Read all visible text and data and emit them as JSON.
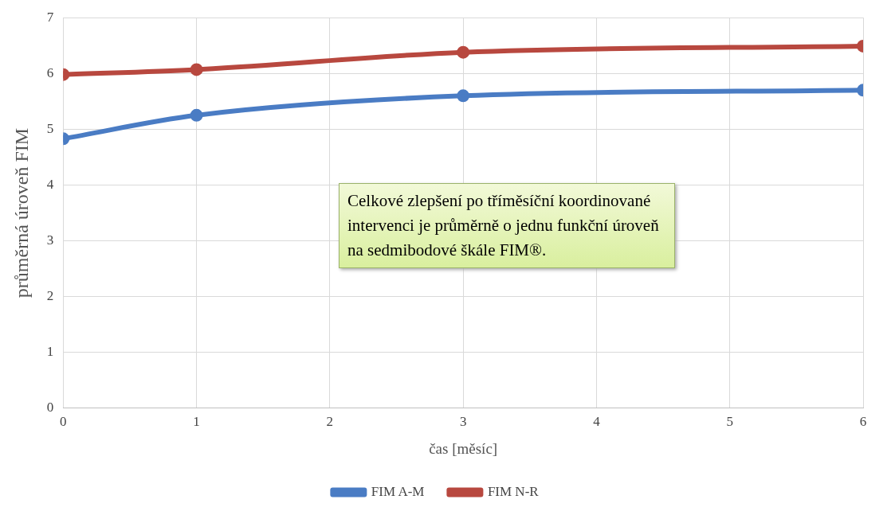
{
  "chart_data": {
    "type": "line",
    "xlabel": "čas [měsíc]",
    "ylabel": "průměrná úroveň FIM",
    "x": [
      0,
      1,
      3,
      6
    ],
    "series": [
      {
        "name": "FIM A-M",
        "color": "#4a7cc4",
        "values": [
          4.83,
          5.25,
          5.6,
          5.7
        ]
      },
      {
        "name": "FIM N-R",
        "color": "#b8483f",
        "values": [
          5.98,
          6.07,
          6.38,
          6.49
        ]
      }
    ],
    "xlim": [
      0,
      6
    ],
    "xticks": [
      0,
      1,
      2,
      3,
      4,
      5,
      6
    ],
    "ylim": [
      0,
      7
    ],
    "yticks": [
      0,
      1,
      2,
      3,
      4,
      5,
      6,
      7
    ],
    "grid": true,
    "legend": "bottom",
    "marker": "circle",
    "line_style": "solid",
    "annotations": [
      "Celkové zlepšení po tříměsíční koordinované intervenci je průměrně o jednu funkční úroveň na sedmibodové škále FIM®."
    ]
  }
}
